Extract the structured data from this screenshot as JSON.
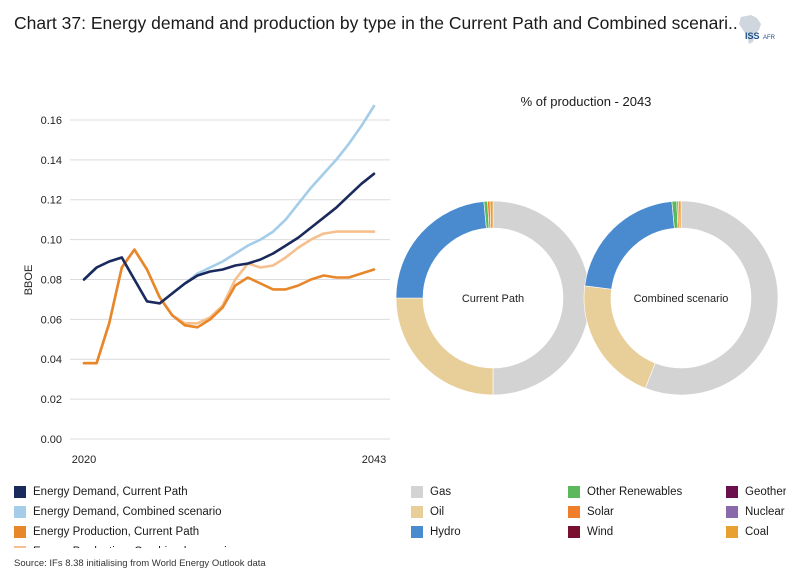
{
  "title": "Chart 37: Energy demand and production by type in the Current Path and Combined scenari..",
  "logo_text": "ISS AFRICA",
  "donut_title": "% of production - 2043",
  "source": "Source: IFs 8.38 initialising from World Energy Outlook data",
  "colors": {
    "demand_cp": "#1b2a5c",
    "demand_cs": "#a3cde8",
    "production_cp": "#e8862a",
    "production_cs": "#f5c08e",
    "gas": "#d3d3d3",
    "oil": "#e8cf9a",
    "hydro": "#4a8bd0",
    "other_renewables": "#5cb85c",
    "solar": "#f07d2a",
    "wind": "#7a1030",
    "geothermal": "#6b0f4f",
    "nuclear": "#8a6aaa",
    "coal": "#e8a030"
  },
  "chart_data": [
    {
      "type": "line",
      "ylabel": "BBOE",
      "xlabel": "",
      "ylim": [
        0,
        0.17
      ],
      "yticks": [
        "0.16",
        "0.14",
        "0.12",
        "0.10",
        "0.08",
        "0.06",
        "0.04",
        "0.02",
        "0.00"
      ],
      "ytick_values": [
        0.16,
        0.14,
        0.12,
        0.1,
        0.08,
        0.06,
        0.04,
        0.02,
        0.0
      ],
      "x_tick_labels": [
        "2020",
        "2043"
      ],
      "x": [
        2020,
        2021,
        2022,
        2023,
        2024,
        2025,
        2026,
        2027,
        2028,
        2029,
        2030,
        2031,
        2032,
        2033,
        2034,
        2035,
        2036,
        2037,
        2038,
        2039,
        2040,
        2041,
        2042,
        2043
      ],
      "grid": true,
      "legend_position": "bottom",
      "series": [
        {
          "name": "Energy Demand, Current Path",
          "color_key": "demand_cp",
          "values": [
            0.08,
            0.086,
            0.089,
            0.091,
            0.08,
            0.069,
            0.068,
            0.073,
            0.078,
            0.082,
            0.084,
            0.085,
            0.087,
            0.088,
            0.09,
            0.093,
            0.097,
            0.101,
            0.106,
            0.111,
            0.116,
            0.122,
            0.128,
            0.133
          ]
        },
        {
          "name": "Energy Demand, Combined scenario",
          "color_key": "demand_cs",
          "values": [
            0.08,
            0.086,
            0.089,
            0.091,
            0.08,
            0.069,
            0.068,
            0.073,
            0.078,
            0.083,
            0.086,
            0.089,
            0.093,
            0.097,
            0.1,
            0.104,
            0.11,
            0.118,
            0.126,
            0.133,
            0.14,
            0.148,
            0.157,
            0.167
          ]
        },
        {
          "name": "Energy Production, Current Path",
          "color_key": "production_cp",
          "values": [
            0.038,
            0.038,
            0.058,
            0.086,
            0.095,
            0.085,
            0.071,
            0.062,
            0.057,
            0.056,
            0.06,
            0.066,
            0.077,
            0.081,
            0.078,
            0.075,
            0.075,
            0.077,
            0.08,
            0.082,
            0.081,
            0.081,
            0.083,
            0.085
          ]
        },
        {
          "name": "Energy Production, Combined scenario",
          "color_key": "production_cs",
          "values": [
            0.038,
            0.038,
            0.058,
            0.086,
            0.095,
            0.085,
            0.071,
            0.062,
            0.058,
            0.058,
            0.061,
            0.067,
            0.08,
            0.088,
            0.086,
            0.087,
            0.091,
            0.096,
            0.1,
            0.103,
            0.104,
            0.104,
            0.104,
            0.104
          ]
        }
      ]
    },
    {
      "type": "pie",
      "title": "% of production - 2043",
      "donuts": [
        {
          "label": "Current Path",
          "slices": [
            {
              "name": "Gas",
              "value": 50.0,
              "color_key": "gas"
            },
            {
              "name": "Oil",
              "value": 25.0,
              "color_key": "oil"
            },
            {
              "name": "Hydro",
              "value": 23.5,
              "color_key": "hydro"
            },
            {
              "name": "Other Renewables",
              "value": 0.6,
              "color_key": "other_renewables"
            },
            {
              "name": "Solar",
              "value": 0.4,
              "color_key": "solar"
            },
            {
              "name": "Coal",
              "value": 0.5,
              "color_key": "coal"
            }
          ]
        },
        {
          "label": "Combined scenario",
          "slices": [
            {
              "name": "Gas",
              "value": 56.0,
              "color_key": "gas"
            },
            {
              "name": "Oil",
              "value": 21.0,
              "color_key": "oil"
            },
            {
              "name": "Hydro",
              "value": 21.5,
              "color_key": "hydro"
            },
            {
              "name": "Other Renewables",
              "value": 0.8,
              "color_key": "other_renewables"
            },
            {
              "name": "Solar",
              "value": 0.3,
              "color_key": "solar"
            },
            {
              "name": "Coal",
              "value": 0.4,
              "color_key": "coal"
            }
          ]
        }
      ]
    }
  ],
  "line_legend": [
    {
      "label": "Energy Demand, Current Path",
      "color_key": "demand_cp"
    },
    {
      "label": "Energy Demand, Combined scenario",
      "color_key": "demand_cs"
    },
    {
      "label": "Energy Production, Current Path",
      "color_key": "production_cp"
    },
    {
      "label": "Energy Production, Combined scenario",
      "color_key": "production_cs"
    }
  ],
  "donut_legend": [
    {
      "label": "Gas",
      "color_key": "gas"
    },
    {
      "label": "Oil",
      "color_key": "oil"
    },
    {
      "label": "Hydro",
      "color_key": "hydro"
    },
    {
      "label": "Other Renewables",
      "color_key": "other_renewables"
    },
    {
      "label": "Solar",
      "color_key": "solar"
    },
    {
      "label": "Wind",
      "color_key": "wind"
    },
    {
      "label": "Geothermal",
      "color_key": "geothermal"
    },
    {
      "label": "Nuclear",
      "color_key": "nuclear"
    },
    {
      "label": "Coal",
      "color_key": "coal"
    }
  ]
}
